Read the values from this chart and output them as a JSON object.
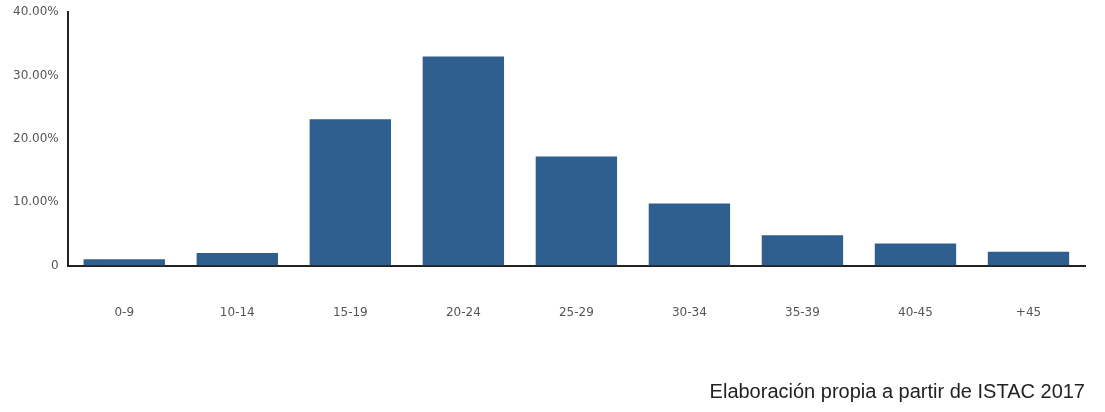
{
  "chart_data": {
    "type": "bar",
    "categories": [
      "0-9",
      "10-14",
      "15-19",
      "20-24",
      "25-29",
      "30-34",
      "35-39",
      "40-45",
      "+45"
    ],
    "values": [
      1.0,
      2.0,
      23.1,
      33.0,
      17.2,
      9.8,
      4.8,
      3.5,
      2.2
    ],
    "color": "#2f5f8f",
    "ylim": [
      0,
      40
    ],
    "yticks": [
      {
        "value": 0,
        "label": "0"
      },
      {
        "value": 10,
        "label": "10.00%"
      },
      {
        "value": 20,
        "label": "20.00%"
      },
      {
        "value": 30,
        "label": "30.00%"
      },
      {
        "value": 40,
        "label": "40.00%"
      }
    ],
    "grid": false,
    "legend": false,
    "annotations": [
      "Elaboración propia a partir de ISTAC 2017"
    ]
  }
}
